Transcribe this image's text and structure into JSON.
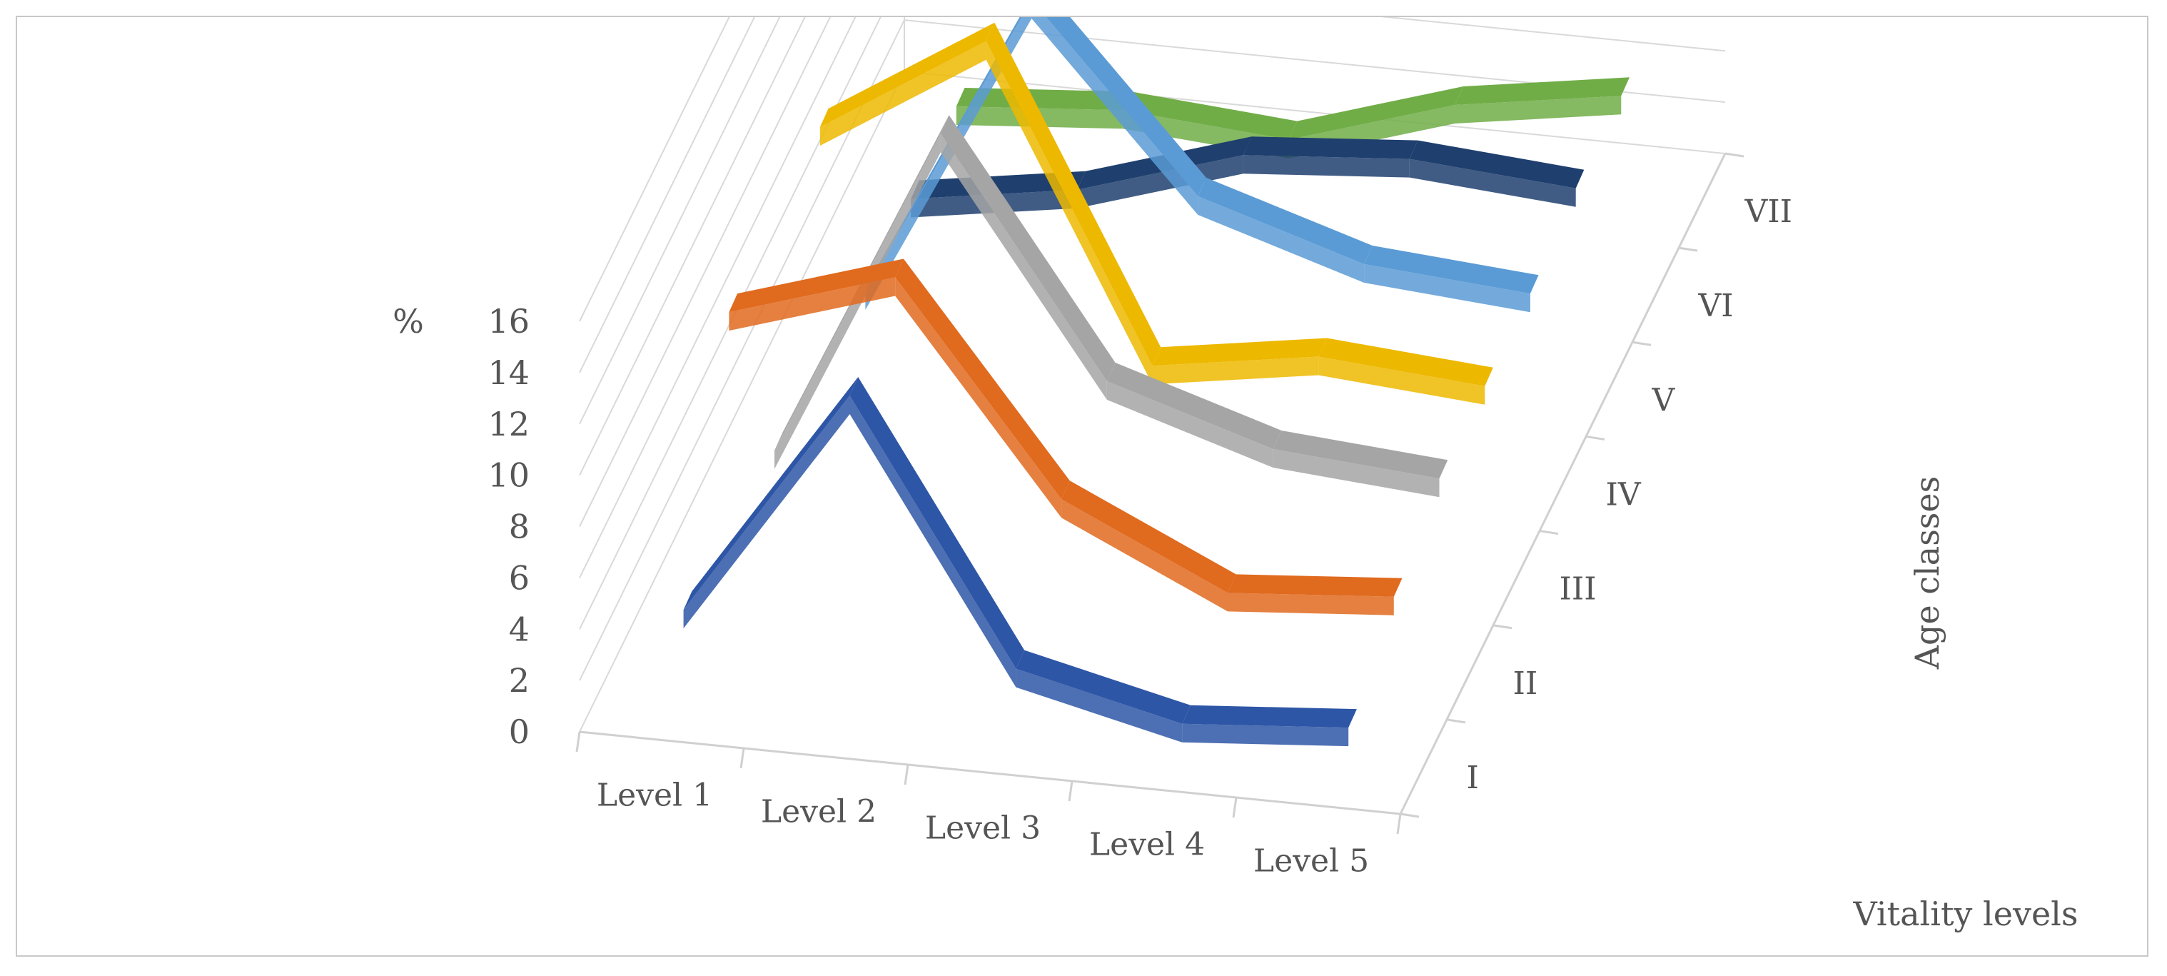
{
  "chart_data": {
    "type": "line",
    "subtype": "3d-line",
    "title": "",
    "ylabel": "%",
    "xlabel": "Vitality levels",
    "zlabel": "Age classes",
    "categories": [
      "Level 1",
      "Level 2",
      "Level 3",
      "Level 4",
      "Level 5"
    ],
    "yticks": [
      "0",
      "2",
      "4",
      "6",
      "8",
      "10",
      "12",
      "14",
      "16"
    ],
    "ylim": [
      0,
      16
    ],
    "grid": true,
    "legend": "none",
    "series": [
      {
        "name": "I",
        "color": "#2E56A6",
        "values": [
          3,
          12,
          2,
          0.5,
          1
        ]
      },
      {
        "name": "II",
        "color": "#E06A1E",
        "values": [
          11,
          13,
          5,
          2,
          2.5
        ]
      },
      {
        "name": "III",
        "color": "#A5A5A5",
        "values": [
          2,
          15,
          6,
          4,
          3.5
        ]
      },
      {
        "name": "IV",
        "color": "#EDB800",
        "values": [
          11,
          15,
          3,
          4,
          3.5
        ]
      },
      {
        "name": "V",
        "color": "#5B9BD5",
        "values": [
          1,
          13,
          6,
          4,
          3.5
        ]
      },
      {
        "name": "VI",
        "color": "#1F3F6E",
        "values": [
          1,
          2,
          4,
          4.5,
          4
        ]
      },
      {
        "name": "VII",
        "color": "#70AD47",
        "values": [
          1,
          1.5,
          1,
          3,
          4
        ]
      }
    ]
  }
}
